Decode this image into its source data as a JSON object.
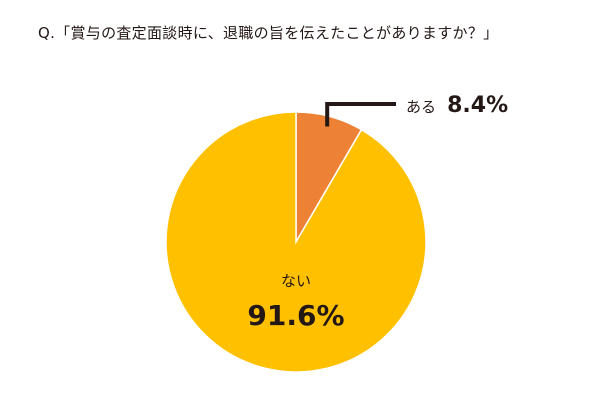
{
  "chart_data": {
    "type": "pie",
    "title": "Q.「賞与の査定面談時に、退職の旨を伝えたことがありますか？」",
    "slices": [
      {
        "label": "ある",
        "value": 8.4,
        "value_label": "8.4%",
        "color": "#ED8135"
      },
      {
        "label": "ない",
        "value": 91.6,
        "value_label": "91.6%",
        "color": "#FFC000"
      }
    ],
    "start_angle": "12 o'clock",
    "direction": "clockwise",
    "slice_border_color": "#ffffff",
    "leader_line_color": "#231815"
  }
}
